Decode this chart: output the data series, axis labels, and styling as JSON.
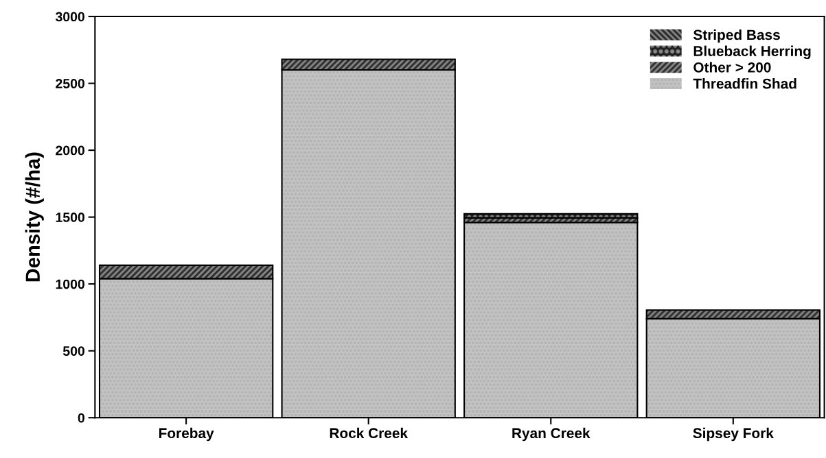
{
  "chart_data": {
    "type": "bar",
    "stacked": true,
    "ylabel": "Density (#/ha)",
    "categories": [
      "Forebay",
      "Rock Creek",
      "Ryan Creek",
      "Sipsey Fork"
    ],
    "series": [
      {
        "name": "Threadfin Shad",
        "color": "#c4c4c4",
        "values": [
          1040,
          2600,
          1460,
          740
        ]
      },
      {
        "name": "Other > 200",
        "color": "#303030",
        "values": [
          100,
          80,
          35,
          65
        ]
      },
      {
        "name": "Blueback Herring",
        "color": "#202020",
        "values": [
          0,
          0,
          30,
          0
        ]
      },
      {
        "name": "Striped Bass",
        "color": "#282828",
        "values": [
          0,
          0,
          0,
          0
        ]
      }
    ],
    "ylim": [
      0,
      3000
    ],
    "yticks": [
      0,
      500,
      1000,
      1500,
      2000,
      2500,
      3000
    ],
    "grid": false,
    "legend": "top right"
  }
}
